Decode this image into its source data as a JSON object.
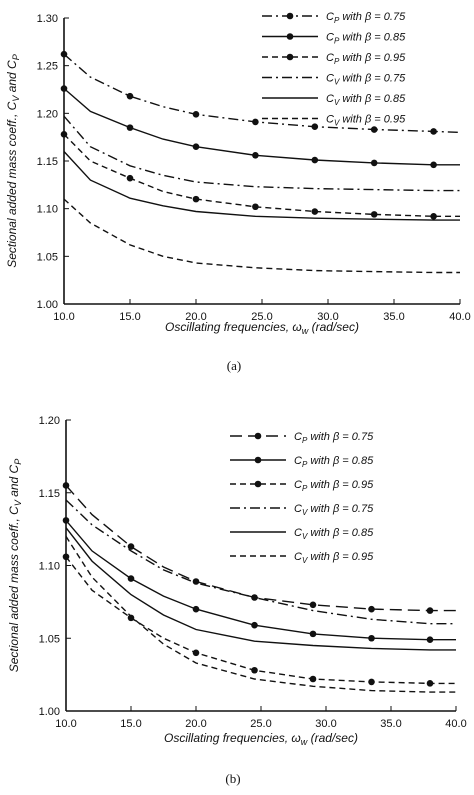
{
  "chart_data": [
    {
      "type": "line",
      "caption": "(a)",
      "xlabel": "Oscillating frequencies,  ωw (rad/sec)",
      "ylabel": "Sectional added mass coeff., CV and  CP",
      "xlim": [
        10,
        40
      ],
      "ylim": [
        1.0,
        1.3
      ],
      "x_ticks": [
        "10.0",
        "15.0",
        "20.0",
        "25.0",
        "30.0",
        "35.0",
        "40.0"
      ],
      "y_ticks": [
        "1.00",
        "1.05",
        "1.10",
        "1.15",
        "1.20",
        "1.25",
        "1.30"
      ],
      "legend_position": "top-right",
      "series": [
        {
          "name": "CP with  β = 0.75",
          "style": "dashdot",
          "markers": true,
          "x": [
            10,
            12,
            15,
            17.5,
            20,
            24.5,
            29,
            33.5,
            38,
            40
          ],
          "y": [
            1.262,
            1.238,
            1.218,
            1.207,
            1.199,
            1.191,
            1.186,
            1.183,
            1.181,
            1.18
          ],
          "marker_x": [
            10,
            15,
            20,
            24.5,
            29,
            33.5,
            38
          ]
        },
        {
          "name": "CP with  β = 0.85",
          "style": "solid",
          "markers": true,
          "x": [
            10,
            12,
            15,
            17.5,
            20,
            24.5,
            29,
            33.5,
            38,
            40
          ],
          "y": [
            1.226,
            1.202,
            1.185,
            1.173,
            1.165,
            1.156,
            1.151,
            1.148,
            1.146,
            1.146
          ],
          "marker_x": [
            10,
            15,
            20,
            24.5,
            29,
            33.5,
            38
          ]
        },
        {
          "name": "CP with  β = 0.95",
          "style": "dashed",
          "markers": true,
          "x": [
            10,
            12,
            15,
            17.5,
            20,
            24.5,
            29,
            33.5,
            38,
            40
          ],
          "y": [
            1.178,
            1.15,
            1.132,
            1.118,
            1.11,
            1.102,
            1.097,
            1.094,
            1.092,
            1.092
          ],
          "marker_x": [
            10,
            15,
            20,
            24.5,
            29,
            33.5,
            38
          ]
        },
        {
          "name": "CV with  β = 0.75",
          "style": "dashdot",
          "markers": false,
          "x": [
            10,
            12,
            15,
            17.5,
            20,
            24.5,
            29,
            33.5,
            38,
            40
          ],
          "y": [
            1.197,
            1.165,
            1.145,
            1.135,
            1.128,
            1.123,
            1.121,
            1.12,
            1.119,
            1.119
          ]
        },
        {
          "name": "CV with  β = 0.85",
          "style": "solid",
          "markers": false,
          "x": [
            10,
            12,
            15,
            17.5,
            20,
            24.5,
            29,
            33.5,
            38,
            40
          ],
          "y": [
            1.16,
            1.13,
            1.111,
            1.103,
            1.097,
            1.092,
            1.09,
            1.089,
            1.088,
            1.088
          ]
        },
        {
          "name": "CV with  β = 0.95",
          "style": "dashed",
          "markers": false,
          "x": [
            10,
            12,
            15,
            17.5,
            20,
            24.5,
            29,
            33.5,
            38,
            40
          ],
          "y": [
            1.11,
            1.085,
            1.062,
            1.05,
            1.043,
            1.038,
            1.035,
            1.034,
            1.033,
            1.033
          ]
        }
      ]
    },
    {
      "type": "line",
      "caption": "(b)",
      "xlabel": "Oscillating frequencies,  ωw (rad/sec)",
      "ylabel": "Sectional added mass coeff., CV and  CP",
      "xlim": [
        10,
        40
      ],
      "ylim": [
        1.0,
        1.2
      ],
      "x_ticks": [
        "10.0",
        "15.0",
        "20.0",
        "25.0",
        "30.0",
        "35.0",
        "40.0"
      ],
      "y_ticks": [
        "1.00",
        "1.05",
        "1.10",
        "1.15",
        "1.20"
      ],
      "legend_position": "top-right",
      "series": [
        {
          "name": "CP with  β = 0.75",
          "style": "longdash",
          "markers": true,
          "x": [
            10,
            12,
            15,
            17.5,
            20,
            24.5,
            29,
            33.5,
            38,
            40
          ],
          "y": [
            1.155,
            1.135,
            1.113,
            1.099,
            1.089,
            1.078,
            1.073,
            1.07,
            1.069,
            1.069
          ],
          "marker_x": [
            10,
            15,
            20,
            24.5,
            29,
            33.5,
            38
          ]
        },
        {
          "name": "CP with  β = 0.85",
          "style": "solid",
          "markers": true,
          "x": [
            10,
            12,
            15,
            17.5,
            20,
            24.5,
            29,
            33.5,
            38,
            40
          ],
          "y": [
            1.131,
            1.11,
            1.091,
            1.079,
            1.07,
            1.059,
            1.053,
            1.05,
            1.049,
            1.049
          ],
          "marker_x": [
            10,
            15,
            20,
            24.5,
            29,
            33.5,
            38
          ]
        },
        {
          "name": "CP with  β = 0.95",
          "style": "dashed",
          "markers": true,
          "x": [
            10,
            12,
            15,
            17.5,
            20,
            24.5,
            29,
            33.5,
            38,
            40
          ],
          "y": [
            1.106,
            1.083,
            1.064,
            1.05,
            1.04,
            1.028,
            1.022,
            1.02,
            1.019,
            1.019
          ],
          "marker_x": [
            10,
            15,
            20,
            24.5,
            29,
            33.5,
            38
          ]
        },
        {
          "name": "CV with  β = 0.75",
          "style": "dashdot",
          "markers": false,
          "x": [
            10,
            12,
            15,
            17.5,
            20,
            24.5,
            29,
            33.5,
            38,
            40
          ],
          "y": [
            1.145,
            1.128,
            1.11,
            1.097,
            1.088,
            1.078,
            1.069,
            1.063,
            1.06,
            1.06
          ]
        },
        {
          "name": "CV with  β = 0.85",
          "style": "solid",
          "markers": false,
          "x": [
            10,
            12,
            15,
            17.5,
            20,
            24.5,
            29,
            33.5,
            38,
            40
          ],
          "y": [
            1.126,
            1.103,
            1.08,
            1.066,
            1.056,
            1.048,
            1.045,
            1.043,
            1.042,
            1.042
          ]
        },
        {
          "name": "CV with  β = 0.95",
          "style": "dashed",
          "markers": false,
          "x": [
            10,
            12,
            15,
            17.5,
            20,
            24.5,
            29,
            33.5,
            38,
            40
          ],
          "y": [
            1.12,
            1.092,
            1.065,
            1.046,
            1.033,
            1.022,
            1.017,
            1.014,
            1.013,
            1.013
          ]
        }
      ]
    }
  ]
}
